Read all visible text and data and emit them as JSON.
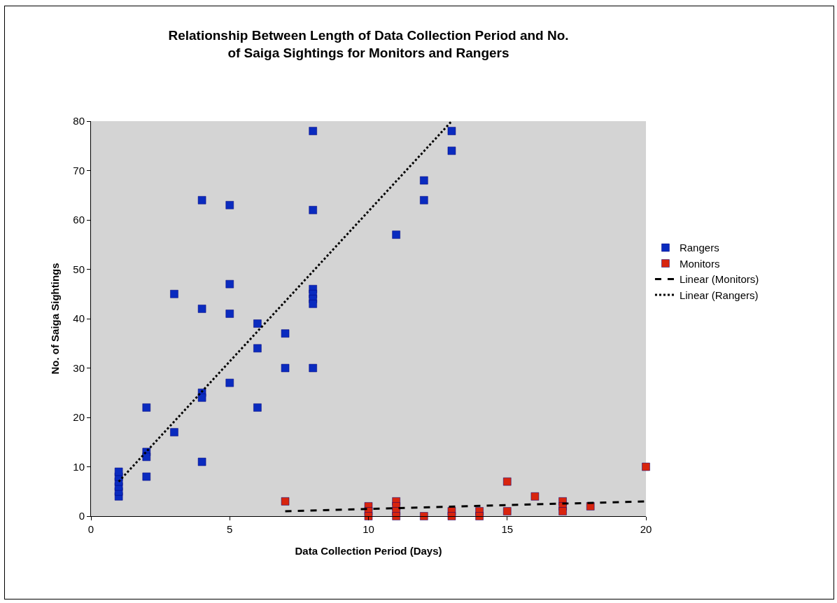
{
  "chart_data": {
    "type": "scatter",
    "title": "Relationship Between Length of Data Collection Period and No.\nof Saiga Sightings for Monitors and Rangers",
    "xlabel": "Data Collection Period (Days)",
    "ylabel": "No. of Saiga Sightings",
    "xlim": [
      0,
      20
    ],
    "xticks": [
      0,
      5,
      10,
      15,
      20
    ],
    "ylim": [
      0,
      80
    ],
    "yticks": [
      0,
      10,
      20,
      30,
      40,
      50,
      60,
      70,
      80
    ],
    "grid": false,
    "legend": "right",
    "marker": "square",
    "series": [
      {
        "name": "Rangers",
        "color": "#0a2bbf",
        "x": [
          1,
          1,
          1,
          1,
          1,
          1,
          2,
          2,
          2,
          2,
          3,
          3,
          4,
          4,
          4,
          4,
          4,
          5,
          5,
          5,
          5,
          6,
          6,
          6,
          7,
          7,
          8,
          8,
          8,
          8,
          8,
          8,
          8,
          11,
          12,
          12,
          13,
          13
        ],
        "values": [
          4,
          5,
          6,
          7,
          8,
          9,
          22,
          13,
          12,
          8,
          45,
          17,
          64,
          42,
          25,
          24,
          11,
          63,
          47,
          41,
          27,
          39,
          34,
          22,
          37,
          30,
          78,
          62,
          46,
          45,
          44,
          43,
          30,
          57,
          68,
          64,
          78,
          74
        ]
      },
      {
        "name": "Monitors",
        "color": "#d8240e",
        "x": [
          7,
          10,
          10,
          10,
          11,
          11,
          11,
          11,
          12,
          13,
          13,
          14,
          14,
          15,
          15,
          16,
          17,
          17,
          17,
          18,
          20
        ],
        "values": [
          3,
          2,
          1,
          0,
          3,
          2,
          1,
          0,
          0,
          1,
          0,
          1,
          0,
          7,
          1,
          4,
          3,
          2,
          1,
          2,
          10
        ]
      },
      {
        "name": "Linear (Monitors)",
        "type": "line",
        "color": "#000000",
        "marker": "none",
        "line_style": "dashed",
        "x": [
          7,
          20
        ],
        "values": [
          1,
          3
        ]
      },
      {
        "name": "Linear (Rangers)",
        "type": "line",
        "color": "#000000",
        "marker": "none",
        "line_style": "dotted",
        "x": [
          1,
          13
        ],
        "values": [
          7,
          80
        ]
      }
    ]
  }
}
